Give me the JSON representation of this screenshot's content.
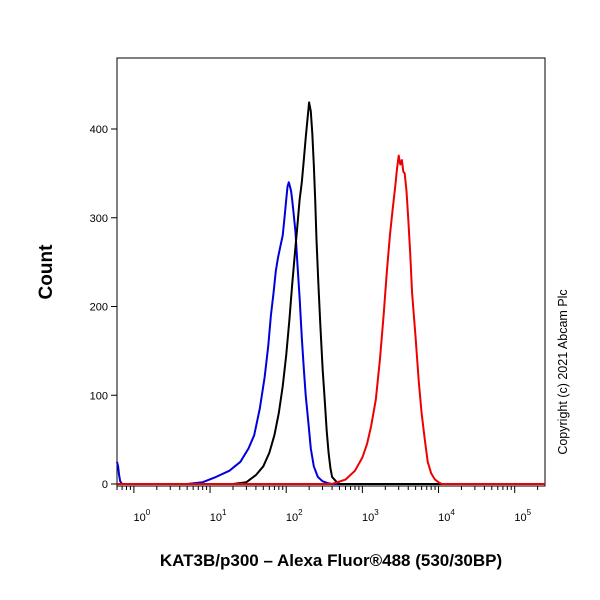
{
  "chart_data": {
    "type": "line",
    "xlabel": "KAT3B/p300 – Alexa Fluor®488 (530/30BP)",
    "ylabel": "Count",
    "copyright": "Copyright (c) 2021 Abcam Plc",
    "x_scale": "log",
    "xlim": [
      0.6,
      250000
    ],
    "ylim": [
      0,
      455
    ],
    "x_ticks": [
      {
        "base": "10",
        "exp": "0",
        "value": 1
      },
      {
        "base": "10",
        "exp": "1",
        "value": 10
      },
      {
        "base": "10",
        "exp": "2",
        "value": 100
      },
      {
        "base": "10",
        "exp": "3",
        "value": 1000
      },
      {
        "base": "10",
        "exp": "4",
        "value": 10000
      },
      {
        "base": "10",
        "exp": "5",
        "value": 100000
      }
    ],
    "y_ticks": [
      "0",
      "100",
      "200",
      "300",
      "400"
    ],
    "y_tick_values": [
      0,
      100,
      200,
      300,
      400
    ],
    "series": [
      {
        "color": "#0000dd",
        "x": [
          0.6,
          0.62,
          0.64,
          0.66,
          0.7,
          1,
          5,
          8,
          12,
          18,
          25,
          32,
          38,
          45,
          52,
          58,
          63,
          68,
          73,
          78,
          84,
          90,
          95,
          100,
          104,
          108,
          112,
          116,
          120,
          125,
          132,
          140,
          150,
          160,
          170,
          180,
          195,
          210,
          230,
          260,
          300,
          350,
          400,
          500,
          1000,
          10000,
          250000
        ],
        "y": [
          25,
          20,
          10,
          3,
          0,
          0,
          0,
          2,
          8,
          15,
          25,
          40,
          55,
          85,
          120,
          155,
          190,
          215,
          240,
          255,
          268,
          280,
          300,
          320,
          335,
          340,
          335,
          330,
          320,
          305,
          285,
          250,
          210,
          165,
          130,
          100,
          70,
          40,
          20,
          8,
          3,
          1,
          0,
          0,
          0,
          0,
          0
        ]
      },
      {
        "color": "#000000",
        "x": [
          0.6,
          10,
          20,
          30,
          40,
          50,
          60,
          70,
          80,
          90,
          100,
          110,
          120,
          130,
          140,
          150,
          160,
          170,
          180,
          190,
          200,
          210,
          220,
          230,
          240,
          250,
          265,
          280,
          300,
          320,
          340,
          360,
          380,
          400,
          450,
          500,
          600,
          1000,
          250000
        ],
        "y": [
          0,
          0,
          0,
          2,
          10,
          20,
          35,
          55,
          80,
          110,
          145,
          185,
          225,
          260,
          290,
          320,
          340,
          365,
          390,
          410,
          430,
          420,
          395,
          360,
          320,
          275,
          225,
          180,
          130,
          95,
          60,
          35,
          18,
          8,
          3,
          0,
          0,
          0,
          0
        ]
      },
      {
        "color": "#ee0000",
        "x": [
          0.6,
          100,
          400,
          600,
          800,
          1000,
          1150,
          1300,
          1500,
          1700,
          1900,
          2100,
          2300,
          2500,
          2700,
          2850,
          3000,
          3150,
          3300,
          3450,
          3600,
          3800,
          4000,
          4250,
          4500,
          5000,
          5500,
          6000,
          6600,
          7200,
          8000,
          9000,
          10000,
          11000,
          250000
        ],
        "y": [
          0,
          0,
          0,
          5,
          15,
          30,
          45,
          65,
          95,
          140,
          190,
          240,
          280,
          310,
          335,
          355,
          370,
          360,
          365,
          352,
          350,
          330,
          300,
          260,
          215,
          165,
          115,
          80,
          50,
          25,
          12,
          5,
          2,
          0,
          0
        ]
      }
    ]
  }
}
